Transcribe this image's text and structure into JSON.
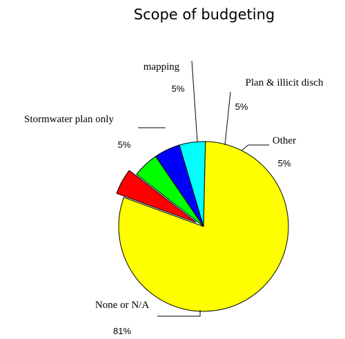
{
  "chart_data": {
    "type": "pie",
    "title": "Scope of budgeting",
    "labels": [
      "None or N/A",
      "Stormwater plan only",
      "mapping",
      "Plan & illicit disch",
      "Other"
    ],
    "value_labels": [
      "81%",
      "5%",
      "5%",
      "5%",
      "5%"
    ],
    "values": [
      81,
      5,
      5,
      5,
      5
    ],
    "colors": [
      "#ffff00",
      "#ff0000",
      "#00ff00",
      "#0000ff",
      "#00ffff"
    ],
    "exploded": [
      "Stormwater plan only"
    ],
    "legend": "none"
  }
}
